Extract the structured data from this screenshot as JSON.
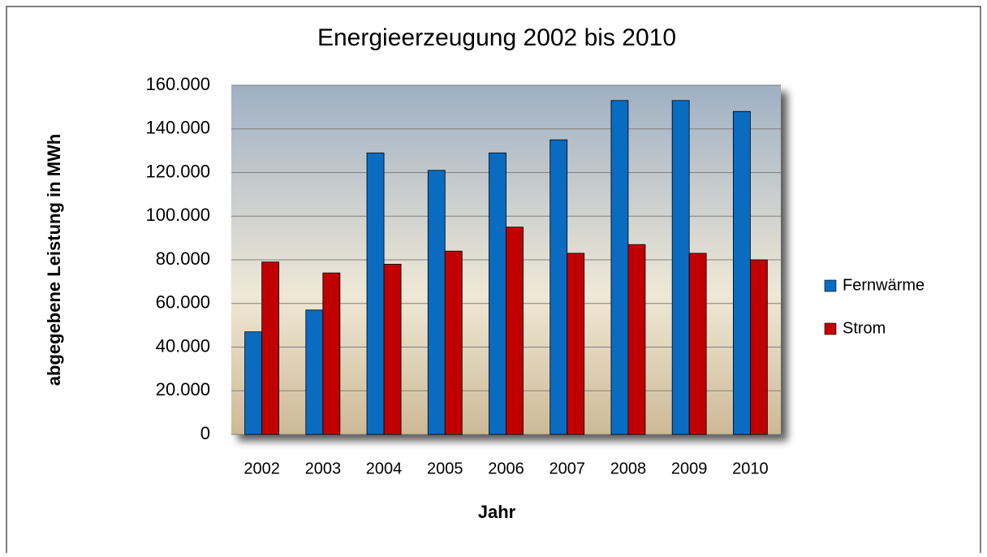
{
  "chart_data": {
    "type": "bar",
    "title": "Energieerzeugung 2002 bis 2010",
    "x_label": "Jahr",
    "y_label": "abgegebene Leistung in MWh",
    "categories": [
      "2002",
      "2003",
      "2004",
      "2005",
      "2006",
      "2007",
      "2008",
      "2009",
      "2010"
    ],
    "series": [
      {
        "name": "Fernwärme",
        "color": "#0a6cc0",
        "values": [
          47000,
          57000,
          129000,
          121000,
          129000,
          135000,
          153000,
          153000,
          148000
        ]
      },
      {
        "name": "Strom",
        "color": "#c00000",
        "values": [
          79000,
          74000,
          78000,
          84000,
          95000,
          83000,
          87000,
          83000,
          80000
        ]
      }
    ],
    "ylim": [
      0,
      160000
    ],
    "yticks": [
      0,
      {
        "value": 20000,
        "label": "20.000"
      },
      {
        "value": 40000,
        "label": "40.000"
      },
      {
        "value": 60000,
        "label": "60.000"
      },
      {
        "value": 80000,
        "label": "80.000"
      },
      {
        "value": 100000,
        "label": "100.000"
      },
      {
        "value": 120000,
        "label": "120.000"
      },
      {
        "value": 140000,
        "label": "140.000"
      },
      {
        "value": 160000,
        "label": "160.000"
      }
    ],
    "grid": true,
    "legend": "right"
  }
}
